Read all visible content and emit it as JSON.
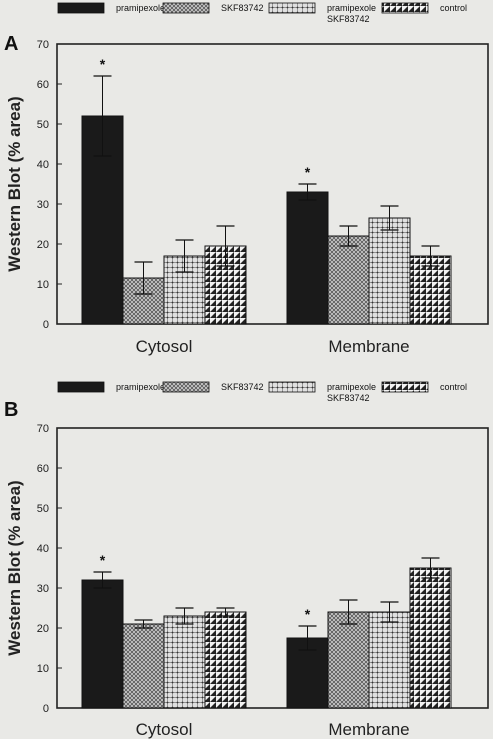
{
  "chart_data": [
    {
      "panel_label": "A",
      "type": "bar",
      "ylabel": "Western Blot (% area)",
      "ylim": [
        0,
        70
      ],
      "yticks": [
        0,
        10,
        20,
        30,
        40,
        50,
        60,
        70
      ],
      "categories": [
        "Cytosol",
        "Membrane"
      ],
      "legend_placement": "top",
      "grid": false,
      "series": [
        {
          "name": "pramipexole",
          "values": [
            52,
            33
          ],
          "errors": [
            10,
            2
          ],
          "significant": [
            true,
            true
          ]
        },
        {
          "name": "SKF83742",
          "values": [
            11.5,
            22
          ],
          "errors": [
            4,
            2.5
          ],
          "significant": [
            false,
            false
          ]
        },
        {
          "name": "pramipexole SKF83742",
          "values": [
            17,
            26.5
          ],
          "errors": [
            4,
            3
          ],
          "significant": [
            false,
            false
          ]
        },
        {
          "name": "control",
          "values": [
            19.5,
            17
          ],
          "errors": [
            5,
            2.5
          ],
          "significant": [
            false,
            false
          ]
        }
      ]
    },
    {
      "panel_label": "B",
      "type": "bar",
      "ylabel": "Western Blot (% area)",
      "ylim": [
        0,
        70
      ],
      "yticks": [
        0,
        10,
        20,
        30,
        40,
        50,
        60,
        70
      ],
      "categories": [
        "Cytosol",
        "Membrane"
      ],
      "legend_placement": "top",
      "grid": false,
      "series": [
        {
          "name": "pramipexole",
          "values": [
            32,
            17.5
          ],
          "errors": [
            2,
            3
          ],
          "significant": [
            true,
            true
          ]
        },
        {
          "name": "SKF83742",
          "values": [
            21,
            24
          ],
          "errors": [
            1,
            3
          ],
          "significant": [
            false,
            false
          ]
        },
        {
          "name": "pramipexole SKF83742",
          "values": [
            23,
            24
          ],
          "errors": [
            2,
            2.5
          ],
          "significant": [
            false,
            false
          ]
        },
        {
          "name": "control",
          "values": [
            24,
            35
          ],
          "errors": [
            1,
            2.5
          ],
          "significant": [
            false,
            false
          ]
        }
      ]
    }
  ],
  "legend": {
    "items": [
      {
        "label": "pramipexole",
        "pattern": "solid"
      },
      {
        "label": "SKF83742",
        "pattern": "cross"
      },
      {
        "label": "pramipexole",
        "label2": "SKF83742",
        "pattern": "dots"
      },
      {
        "label": "control",
        "pattern": "tri"
      }
    ]
  },
  "significance_marker": "*",
  "colors": {
    "solid": "#1a1a1a",
    "background": "#e9e9e6",
    "axis": "#222222"
  }
}
